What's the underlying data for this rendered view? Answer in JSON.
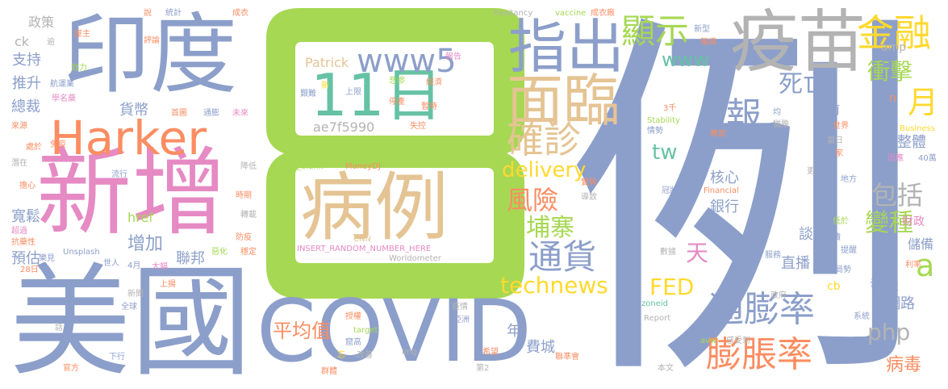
{
  "colors": {
    "blue": "#8C9FCA",
    "orange": "#FB8D62",
    "pink": "#E68AC4",
    "green": "#A6D853",
    "yellow": "#FFD92E",
    "tan": "#E5C494",
    "teal": "#66C2A4",
    "gray": "#B3B3B3"
  },
  "words": [
    {
      "text": "例",
      "color": "#8C9FCA"
    },
    {
      "text": "8",
      "color": "#A6D853"
    },
    {
      "text": "美國",
      "color": "#8C9FCA"
    },
    {
      "text": "印度",
      "color": "#8C9FCA"
    },
    {
      "text": "新增",
      "color": "#E68AC4"
    },
    {
      "text": "COVID",
      "color": "#8C9FCA"
    },
    {
      "text": "疫苗",
      "color": "#B3B3B3"
    },
    {
      "text": "病例",
      "color": "#E5C494"
    },
    {
      "text": "Harker",
      "color": "#FB8D62"
    },
    {
      "text": "指出",
      "color": "#8C9FCA"
    },
    {
      "text": "11日",
      "color": "#66C2A4"
    },
    {
      "text": "面臨",
      "color": "#E5C494"
    },
    {
      "text": "www5",
      "color": "#8C9FCA"
    },
    {
      "text": "金融",
      "color": "#FFD92E"
    },
    {
      "text": "顯示",
      "color": "#A6D853"
    },
    {
      "text": "報",
      "color": "#8C9FCA"
    },
    {
      "text": "確診",
      "color": "#E5C494"
    },
    {
      "text": "通膨率",
      "color": "#8C9FCA"
    },
    {
      "text": "膨脹率",
      "color": "#FB8D62"
    },
    {
      "text": "technews",
      "color": "#FFD92E"
    },
    {
      "text": "通貨",
      "color": "#8C9FCA"
    },
    {
      "text": "死亡",
      "color": "#8C9FCA"
    },
    {
      "text": "月",
      "color": "#FFD92E"
    },
    {
      "text": "www",
      "color": "#66C2A4"
    },
    {
      "text": "delivery",
      "color": "#FFD92E"
    },
    {
      "text": "風險",
      "color": "#FB8D62"
    },
    {
      "text": "柬埔寨",
      "color": "#A6D853"
    },
    {
      "text": "包括",
      "color": "#B3B3B3"
    },
    {
      "text": "變種",
      "color": "#A6D853"
    },
    {
      "text": "衝擊",
      "color": "#A6D853"
    },
    {
      "text": "FED",
      "color": "#FFD92E"
    },
    {
      "text": "php",
      "color": "#B3B3B3"
    },
    {
      "text": "平均值",
      "color": "#FB8D62"
    },
    {
      "text": "病毒",
      "color": "#FB8D62"
    },
    {
      "text": "a",
      "color": "#A6D853"
    },
    {
      "text": "tw",
      "color": "#66C2A4"
    },
    {
      "text": "天",
      "color": "#E68AC4"
    },
    {
      "text": "增加",
      "color": "#8C9FCA"
    },
    {
      "text": "整體",
      "color": "#8C9FCA"
    },
    {
      "text": "直播",
      "color": "#8C9FCA"
    },
    {
      "text": "談話",
      "color": "#8C9FCA"
    },
    {
      "text": "聯邦",
      "color": "#8C9FCA"
    },
    {
      "text": "核心",
      "color": "#8C9FCA"
    },
    {
      "text": "銀行",
      "color": "#8C9FCA"
    },
    {
      "text": "貨幣",
      "color": "#8C9FCA"
    },
    {
      "text": "推升",
      "color": "#8C9FCA"
    },
    {
      "text": "支持",
      "color": "#8C9FCA"
    },
    {
      "text": "總裁",
      "color": "#8C9FCA"
    },
    {
      "text": "寬鬆",
      "color": "#8C9FCA"
    },
    {
      "text": "預估",
      "color": "#8C9FCA"
    },
    {
      "text": "財政",
      "color": "#E68AC4"
    },
    {
      "text": "儲備",
      "color": "#8C9FCA"
    },
    {
      "text": "發表",
      "color": "#8C9FCA"
    },
    {
      "text": "網路",
      "color": "#8C9FCA"
    },
    {
      "text": "費城",
      "color": "#8C9FCA"
    },
    {
      "text": "年",
      "color": "#8C9FCA"
    },
    {
      "text": "前",
      "color": "#8C9FCA"
    },
    {
      "text": "ae7f5990",
      "color": "#B3B3B3"
    },
    {
      "text": "Patrick",
      "color": "#E5C494"
    },
    {
      "text": "href",
      "color": "#A6D853"
    },
    {
      "text": "cb",
      "color": "#FFD92E"
    },
    {
      "text": "ck",
      "color": "#B3B3B3"
    },
    {
      "text": "n",
      "color": "#FB8D62"
    },
    {
      "text": "amp",
      "color": "#B3B3B3"
    },
    {
      "text": "政策",
      "color": "#B3B3B3"
    },
    {
      "text": "_blank",
      "color": "#A6D853"
    },
    {
      "text": "MoneyDJ",
      "color": "#FB8D62"
    },
    {
      "text": "CNN",
      "color": "#E5C494"
    },
    {
      "text": "INSERT_RANDOM_NUMBER_HERE",
      "color": "#E68AC4"
    },
    {
      "text": "Worldometer",
      "color": "#B3B3B3"
    },
    {
      "text": "Unsplash",
      "color": "#8C9FCA"
    },
    {
      "text": "hesitancy",
      "color": "#B3B3B3"
    },
    {
      "text": "vaccine",
      "color": "#A6D853"
    },
    {
      "text": "成衣廠",
      "color": "#FB8D62"
    },
    {
      "text": "統計",
      "color": "#8C9FCA"
    },
    {
      "text": "成衣",
      "color": "#FB8D62"
    },
    {
      "text": "說",
      "color": "#FB8D62"
    },
    {
      "text": "src",
      "color": "#A6D853"
    },
    {
      "text": "Stability",
      "color": "#A6D853"
    },
    {
      "text": "Business",
      "color": "#FFD92E"
    },
    {
      "text": "Financial",
      "color": "#FB8D62"
    },
    {
      "text": "Report",
      "color": "#B3B3B3"
    },
    {
      "text": "zoneid",
      "color": "#66C2A4"
    },
    {
      "text": "target",
      "color": "#A6D853"
    },
    {
      "text": "img",
      "color": "#B3B3B3"
    },
    {
      "text": "avw",
      "color": "#A6D853"
    },
    {
      "text": "40萬",
      "color": "#8C9FCA"
    },
    {
      "text": "28日",
      "color": "#FB8D62"
    },
    {
      "text": "4月",
      "color": "#8C9FCA"
    },
    {
      "text": "第2",
      "color": "#B3B3B3"
    },
    {
      "text": "3千",
      "color": "#FB8D62"
    },
    {
      "text": "經濟",
      "color": "#FB8D62"
    },
    {
      "text": "悲慘",
      "color": "#A6D853"
    },
    {
      "text": "上限",
      "color": "#8C9FCA"
    },
    {
      "text": "停產",
      "color": "#FB8D62"
    },
    {
      "text": "暫時",
      "color": "#FB8D62"
    },
    {
      "text": "失控",
      "color": "#FB8D62"
    },
    {
      "text": "艱難",
      "color": "#8C9FCA"
    },
    {
      "text": "報告",
      "color": "#E68AC4"
    },
    {
      "text": "新",
      "color": "#FFD92E"
    },
    {
      "text": "新型",
      "color": "#8C9FCA"
    },
    {
      "text": "報導",
      "color": "#FB8D62"
    },
    {
      "text": "通膨",
      "color": "#8C9FCA"
    },
    {
      "text": "首圖",
      "color": "#FB8D62"
    },
    {
      "text": "未來",
      "color": "#E68AC4"
    },
    {
      "text": "屋主",
      "color": "#FB8D62"
    },
    {
      "text": "評論",
      "color": "#FB8D62"
    },
    {
      "text": "效力",
      "color": "#A6D853"
    },
    {
      "text": "逾",
      "color": "#B3B3B3"
    },
    {
      "text": "航運業",
      "color": "#8C9FCA"
    },
    {
      "text": "學名藥",
      "color": "#E68AC4"
    },
    {
      "text": "來源",
      "color": "#FB8D62"
    },
    {
      "text": "免疫",
      "color": "#FB8D62"
    },
    {
      "text": "處於",
      "color": "#FB8D62"
    },
    {
      "text": "潛在",
      "color": "#B3B3B3"
    },
    {
      "text": "流行",
      "color": "#8C9FCA"
    },
    {
      "text": "擔心",
      "color": "#FB8D62"
    },
    {
      "text": "超過",
      "color": "#E68AC4"
    },
    {
      "text": "抗藥性",
      "color": "#FB8D62"
    },
    {
      "text": "樂見",
      "color": "#8C9FCA"
    },
    {
      "text": "世人",
      "color": "#8C9FCA"
    },
    {
      "text": "大幅",
      "color": "#E68AC4"
    },
    {
      "text": "惡化",
      "color": "#A6D853"
    },
    {
      "text": "穩定",
      "color": "#FB8D62"
    },
    {
      "text": "防疫",
      "color": "#FB8D62"
    },
    {
      "text": "轉載",
      "color": "#B3B3B3"
    },
    {
      "text": "時期",
      "color": "#FB8D62"
    },
    {
      "text": "降低",
      "color": "#B3B3B3"
    },
    {
      "text": "新聞",
      "color": "#B3B3B3"
    },
    {
      "text": "全球",
      "color": "#8C9FCA"
    },
    {
      "text": "上揚",
      "color": "#FB8D62"
    },
    {
      "text": "話",
      "color": "#B3B3B3"
    },
    {
      "text": "下行",
      "color": "#8C9FCA"
    },
    {
      "text": "官方",
      "color": "#FB8D62"
    },
    {
      "text": "疫情",
      "color": "#B3B3B3"
    },
    {
      "text": "亞洲",
      "color": "#8C9FCA"
    },
    {
      "text": "授權",
      "color": "#FB8D62"
    },
    {
      "text": "窟高",
      "color": "#8C9FCA"
    },
    {
      "text": "改善",
      "color": "#B3B3B3"
    },
    {
      "text": "忘",
      "color": "#FFD92E"
    },
    {
      "text": "群體",
      "color": "#FB8D62"
    },
    {
      "text": "希望",
      "color": "#FB8D62"
    },
    {
      "text": "聯準會",
      "color": "#FB8D62"
    },
    {
      "text": "實質",
      "color": "#FB8D62"
    },
    {
      "text": "導致",
      "color": "#B3B3B3"
    },
    {
      "text": "數據",
      "color": "#B3B3B3"
    },
    {
      "text": "冠狀",
      "color": "#8C9FCA"
    },
    {
      "text": "情勢",
      "color": "#8C9FCA"
    },
    {
      "text": "專家",
      "color": "#FB8D62"
    },
    {
      "text": "均",
      "color": "#8C9FCA"
    },
    {
      "text": "猶豫",
      "color": "#B3B3B3"
    },
    {
      "text": "世界",
      "color": "#FB8D62"
    },
    {
      "text": "當日",
      "color": "#B3B3B3"
    },
    {
      "text": "家",
      "color": "#FB8D62"
    },
    {
      "text": "因應",
      "color": "#E68AC4"
    },
    {
      "text": "更",
      "color": "#B3B3B3"
    },
    {
      "text": "地方",
      "color": "#8C9FCA"
    },
    {
      "text": "低於",
      "color": "#A6D853"
    },
    {
      "text": "連續",
      "color": "#8C9FCA"
    },
    {
      "text": "提醒",
      "color": "#8C9FCA"
    },
    {
      "text": "局勢",
      "color": "#8C9FCA"
    },
    {
      "text": "利率",
      "color": "#FB8D62"
    },
    {
      "text": "服務",
      "color": "#8C9FCA"
    },
    {
      "text": "政府",
      "color": "#B3B3B3"
    },
    {
      "text": "系統",
      "color": "#8C9FCA"
    },
    {
      "text": "感受到",
      "color": "#B3B3B3"
    },
    {
      "text": "本文",
      "color": "#B3B3B3"
    }
  ]
}
